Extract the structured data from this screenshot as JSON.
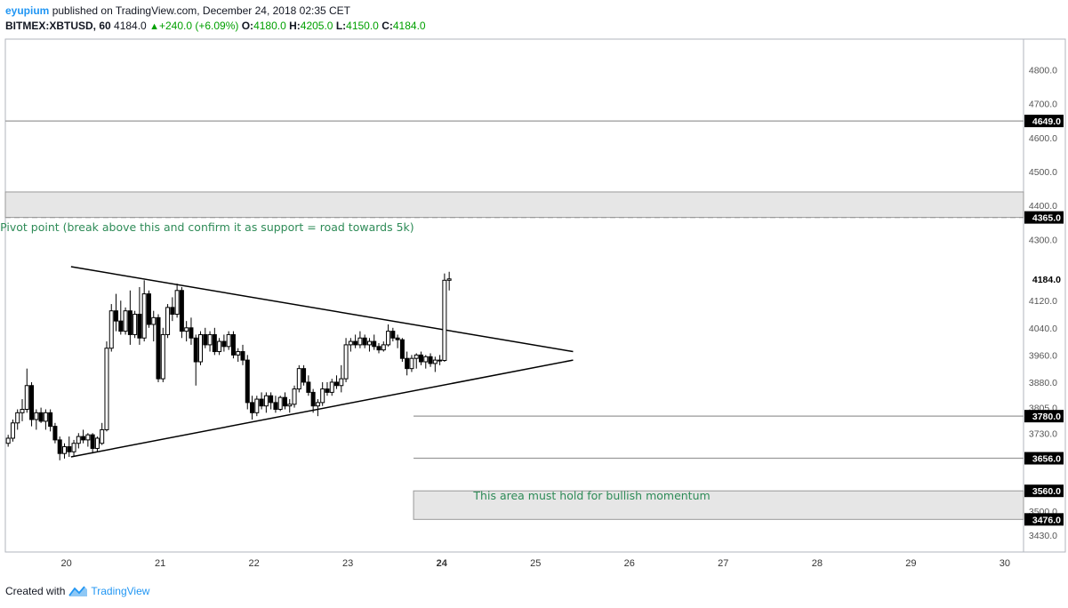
{
  "header": {
    "user": "eyupium",
    "published_text": "published on TradingView.com, December 24, 2018 02:35 CET",
    "symbol": "BITMEX:XBTUSD, 60",
    "last": "4184.0",
    "change": "+240.0 (+6.09%)",
    "open_label": "O:",
    "open": "4180.0",
    "high_label": "H:",
    "high": "4205.0",
    "low_label": "L:",
    "low": "4150.0",
    "close_label": "C:",
    "close": "4184.0"
  },
  "footer": {
    "created_with": "Created with",
    "brand": "TradingView"
  },
  "colors": {
    "up": "#ffffff",
    "down": "#000000",
    "level_line": "#999999",
    "zone": "#e6e6e6",
    "annotation": "#2e8b57",
    "accent": "#2196f3"
  },
  "chart_data": {
    "type": "candlestick",
    "x_axis": {
      "unit": "day (December 2018)",
      "range": [
        19.35,
        30.2
      ],
      "ticks": [
        20,
        21,
        22,
        23,
        24,
        25,
        26,
        27,
        28,
        29,
        30
      ]
    },
    "y_axis": {
      "range": [
        3380,
        4890
      ],
      "ticks": [
        4800,
        4700,
        4600,
        4500,
        4400,
        4300,
        4120,
        4040,
        3960,
        3880,
        3805,
        3730,
        3500,
        3430
      ]
    },
    "price_labels": [
      {
        "value": 4649,
        "label": "4649.0"
      },
      {
        "value": 4365,
        "label": "4365.0"
      },
      {
        "value": 4184,
        "label": "4184.0",
        "current": true
      },
      {
        "value": 3780,
        "label": "3780.0"
      },
      {
        "value": 3656,
        "label": "3656.0"
      },
      {
        "value": 3560,
        "label": "3560.0"
      },
      {
        "value": 3476,
        "label": "3476.0"
      }
    ],
    "levels": [
      {
        "price": 4649,
        "x_start": 19.35,
        "style": "solid"
      },
      {
        "price": 4365,
        "x_start": 19.35,
        "style": "dashed"
      },
      {
        "price": 3780,
        "x_start": 23.7,
        "style": "solid"
      },
      {
        "price": 3656,
        "x_start": 23.7,
        "style": "solid"
      }
    ],
    "zones": [
      {
        "from": 4365,
        "to": 4440,
        "x_start": 19.35
      },
      {
        "from": 3476,
        "to": 3560,
        "x_start": 23.7
      }
    ],
    "trendlines": [
      {
        "from": [
          20.05,
          4220
        ],
        "to": [
          25.4,
          3970
        ]
      },
      {
        "from": [
          20.05,
          3660
        ],
        "to": [
          25.4,
          3945
        ]
      }
    ],
    "annotations": [
      {
        "text": "Pivot point (break above this and confirm it as support = road towards 5k)",
        "x": 21.5,
        "y": 4325
      },
      {
        "text": "This area must hold for bullish momentum",
        "x": 25.6,
        "y": 3535
      }
    ],
    "candles": [
      {
        "x": 19.38,
        "o": 3700,
        "h": 3725,
        "l": 3690,
        "c": 3715
      },
      {
        "x": 19.43,
        "o": 3715,
        "h": 3770,
        "l": 3705,
        "c": 3760
      },
      {
        "x": 19.48,
        "o": 3760,
        "h": 3800,
        "l": 3740,
        "c": 3790
      },
      {
        "x": 19.53,
        "o": 3790,
        "h": 3830,
        "l": 3765,
        "c": 3800
      },
      {
        "x": 19.58,
        "o": 3800,
        "h": 3920,
        "l": 3790,
        "c": 3870
      },
      {
        "x": 19.63,
        "o": 3870,
        "h": 3880,
        "l": 3750,
        "c": 3770
      },
      {
        "x": 19.68,
        "o": 3770,
        "h": 3800,
        "l": 3740,
        "c": 3790
      },
      {
        "x": 19.73,
        "o": 3790,
        "h": 3805,
        "l": 3760,
        "c": 3765
      },
      {
        "x": 19.78,
        "o": 3765,
        "h": 3800,
        "l": 3740,
        "c": 3790
      },
      {
        "x": 19.83,
        "o": 3790,
        "h": 3800,
        "l": 3735,
        "c": 3750
      },
      {
        "x": 19.88,
        "o": 3750,
        "h": 3760,
        "l": 3700,
        "c": 3710
      },
      {
        "x": 19.93,
        "o": 3710,
        "h": 3720,
        "l": 3650,
        "c": 3670
      },
      {
        "x": 19.98,
        "o": 3670,
        "h": 3700,
        "l": 3655,
        "c": 3690
      },
      {
        "x": 20.03,
        "o": 3690,
        "h": 3720,
        "l": 3660,
        "c": 3675
      },
      {
        "x": 20.08,
        "o": 3675,
        "h": 3710,
        "l": 3660,
        "c": 3700
      },
      {
        "x": 20.13,
        "o": 3700,
        "h": 3730,
        "l": 3685,
        "c": 3720
      },
      {
        "x": 20.18,
        "o": 3720,
        "h": 3740,
        "l": 3700,
        "c": 3710
      },
      {
        "x": 20.23,
        "o": 3710,
        "h": 3730,
        "l": 3690,
        "c": 3725
      },
      {
        "x": 20.28,
        "o": 3725,
        "h": 3730,
        "l": 3670,
        "c": 3685
      },
      {
        "x": 20.33,
        "o": 3685,
        "h": 3720,
        "l": 3675,
        "c": 3715
      },
      {
        "x": 20.38,
        "o": 3700,
        "h": 3760,
        "l": 3695,
        "c": 3740
      },
      {
        "x": 20.43,
        "o": 3740,
        "h": 4000,
        "l": 3735,
        "c": 3980
      },
      {
        "x": 20.48,
        "o": 3980,
        "h": 4110,
        "l": 3970,
        "c": 4090
      },
      {
        "x": 20.53,
        "o": 4090,
        "h": 4140,
        "l": 4030,
        "c": 4060
      },
      {
        "x": 20.58,
        "o": 4060,
        "h": 4120,
        "l": 4020,
        "c": 4030
      },
      {
        "x": 20.63,
        "o": 4030,
        "h": 4100,
        "l": 4020,
        "c": 4090
      },
      {
        "x": 20.68,
        "o": 4090,
        "h": 4150,
        "l": 3990,
        "c": 4020
      },
      {
        "x": 20.73,
        "o": 4020,
        "h": 4090,
        "l": 4010,
        "c": 4080
      },
      {
        "x": 20.78,
        "o": 4080,
        "h": 4160,
        "l": 3990,
        "c": 4010
      },
      {
        "x": 20.83,
        "o": 4010,
        "h": 4180,
        "l": 4000,
        "c": 4140
      },
      {
        "x": 20.88,
        "o": 4140,
        "h": 4150,
        "l": 4040,
        "c": 4050
      },
      {
        "x": 20.93,
        "o": 4050,
        "h": 4090,
        "l": 4000,
        "c": 4070
      },
      {
        "x": 20.98,
        "o": 4070,
        "h": 4080,
        "l": 3880,
        "c": 3890
      },
      {
        "x": 21.03,
        "o": 3890,
        "h": 4040,
        "l": 3880,
        "c": 4020
      },
      {
        "x": 21.08,
        "o": 4020,
        "h": 4110,
        "l": 4010,
        "c": 4100
      },
      {
        "x": 21.13,
        "o": 4100,
        "h": 4130,
        "l": 4060,
        "c": 4080
      },
      {
        "x": 21.18,
        "o": 4080,
        "h": 4170,
        "l": 4070,
        "c": 4150
      },
      {
        "x": 21.23,
        "o": 4150,
        "h": 4160,
        "l": 4010,
        "c": 4030
      },
      {
        "x": 21.28,
        "o": 4030,
        "h": 4060,
        "l": 4000,
        "c": 4040
      },
      {
        "x": 21.33,
        "o": 4040,
        "h": 4070,
        "l": 3990,
        "c": 4010
      },
      {
        "x": 21.38,
        "o": 4010,
        "h": 4020,
        "l": 3870,
        "c": 3940
      },
      {
        "x": 21.43,
        "o": 3940,
        "h": 4030,
        "l": 3930,
        "c": 4020
      },
      {
        "x": 21.48,
        "o": 4020,
        "h": 4040,
        "l": 3980,
        "c": 3990
      },
      {
        "x": 21.53,
        "o": 3990,
        "h": 4030,
        "l": 3970,
        "c": 4020
      },
      {
        "x": 21.58,
        "o": 4020,
        "h": 4040,
        "l": 3960,
        "c": 3970
      },
      {
        "x": 21.63,
        "o": 3970,
        "h": 4010,
        "l": 3960,
        "c": 4000
      },
      {
        "x": 21.68,
        "o": 4000,
        "h": 4020,
        "l": 3970,
        "c": 3985
      },
      {
        "x": 21.73,
        "o": 3985,
        "h": 4030,
        "l": 3975,
        "c": 4020
      },
      {
        "x": 21.78,
        "o": 4020,
        "h": 4030,
        "l": 3950,
        "c": 3960
      },
      {
        "x": 21.83,
        "o": 3960,
        "h": 3980,
        "l": 3940,
        "c": 3970
      },
      {
        "x": 21.88,
        "o": 3970,
        "h": 3990,
        "l": 3930,
        "c": 3945
      },
      {
        "x": 21.93,
        "o": 3945,
        "h": 3960,
        "l": 3800,
        "c": 3820
      },
      {
        "x": 21.98,
        "o": 3820,
        "h": 3840,
        "l": 3770,
        "c": 3790
      },
      {
        "x": 22.03,
        "o": 3790,
        "h": 3840,
        "l": 3780,
        "c": 3830
      },
      {
        "x": 22.08,
        "o": 3830,
        "h": 3850,
        "l": 3800,
        "c": 3810
      },
      {
        "x": 22.13,
        "o": 3810,
        "h": 3850,
        "l": 3790,
        "c": 3840
      },
      {
        "x": 22.18,
        "o": 3840,
        "h": 3850,
        "l": 3800,
        "c": 3820
      },
      {
        "x": 22.23,
        "o": 3820,
        "h": 3840,
        "l": 3790,
        "c": 3800
      },
      {
        "x": 22.28,
        "o": 3800,
        "h": 3840,
        "l": 3795,
        "c": 3835
      },
      {
        "x": 22.33,
        "o": 3835,
        "h": 3850,
        "l": 3800,
        "c": 3810
      },
      {
        "x": 22.38,
        "o": 3810,
        "h": 3830,
        "l": 3790,
        "c": 3815
      },
      {
        "x": 22.43,
        "o": 3815,
        "h": 3870,
        "l": 3805,
        "c": 3860
      },
      {
        "x": 22.48,
        "o": 3860,
        "h": 3930,
        "l": 3850,
        "c": 3920
      },
      {
        "x": 22.53,
        "o": 3920,
        "h": 3930,
        "l": 3870,
        "c": 3880
      },
      {
        "x": 22.58,
        "o": 3880,
        "h": 3900,
        "l": 3840,
        "c": 3850
      },
      {
        "x": 22.63,
        "o": 3850,
        "h": 3860,
        "l": 3790,
        "c": 3810
      },
      {
        "x": 22.68,
        "o": 3810,
        "h": 3830,
        "l": 3780,
        "c": 3820
      },
      {
        "x": 22.73,
        "o": 3820,
        "h": 3880,
        "l": 3810,
        "c": 3860
      },
      {
        "x": 22.78,
        "o": 3860,
        "h": 3880,
        "l": 3840,
        "c": 3850
      },
      {
        "x": 22.83,
        "o": 3850,
        "h": 3890,
        "l": 3840,
        "c": 3880
      },
      {
        "x": 22.88,
        "o": 3880,
        "h": 3900,
        "l": 3860,
        "c": 3870
      },
      {
        "x": 22.93,
        "o": 3870,
        "h": 3930,
        "l": 3850,
        "c": 3890
      },
      {
        "x": 22.98,
        "o": 3890,
        "h": 4010,
        "l": 3880,
        "c": 3990
      },
      {
        "x": 23.03,
        "o": 3990,
        "h": 4010,
        "l": 3970,
        "c": 4000
      },
      {
        "x": 23.08,
        "o": 4000,
        "h": 4020,
        "l": 3980,
        "c": 3990
      },
      {
        "x": 23.13,
        "o": 3990,
        "h": 4030,
        "l": 3980,
        "c": 4010
      },
      {
        "x": 23.18,
        "o": 4010,
        "h": 4020,
        "l": 3980,
        "c": 3990
      },
      {
        "x": 23.23,
        "o": 3990,
        "h": 4010,
        "l": 3970,
        "c": 4000
      },
      {
        "x": 23.28,
        "o": 4000,
        "h": 4020,
        "l": 3975,
        "c": 3985
      },
      {
        "x": 23.33,
        "o": 3985,
        "h": 3995,
        "l": 3965,
        "c": 3975
      },
      {
        "x": 23.38,
        "o": 3975,
        "h": 4000,
        "l": 3970,
        "c": 3990
      },
      {
        "x": 23.43,
        "o": 3990,
        "h": 4050,
        "l": 3985,
        "c": 4030
      },
      {
        "x": 23.48,
        "o": 4030,
        "h": 4040,
        "l": 4000,
        "c": 4010
      },
      {
        "x": 23.53,
        "o": 4010,
        "h": 4020,
        "l": 3980,
        "c": 4005
      },
      {
        "x": 23.58,
        "o": 4005,
        "h": 4010,
        "l": 3940,
        "c": 3950
      },
      {
        "x": 23.63,
        "o": 3950,
        "h": 3970,
        "l": 3900,
        "c": 3920
      },
      {
        "x": 23.68,
        "o": 3920,
        "h": 3960,
        "l": 3910,
        "c": 3950
      },
      {
        "x": 23.73,
        "o": 3950,
        "h": 3965,
        "l": 3920,
        "c": 3960
      },
      {
        "x": 23.78,
        "o": 3960,
        "h": 3970,
        "l": 3930,
        "c": 3940
      },
      {
        "x": 23.83,
        "o": 3940,
        "h": 3960,
        "l": 3920,
        "c": 3955
      },
      {
        "x": 23.88,
        "o": 3955,
        "h": 3965,
        "l": 3925,
        "c": 3935
      },
      {
        "x": 23.93,
        "o": 3935,
        "h": 3955,
        "l": 3910,
        "c": 3945
      },
      {
        "x": 23.98,
        "o": 3945,
        "h": 3960,
        "l": 3930,
        "c": 3944
      },
      {
        "x": 24.03,
        "o": 3944,
        "h": 4200,
        "l": 3940,
        "c": 4180
      },
      {
        "x": 24.08,
        "o": 4180,
        "h": 4205,
        "l": 4150,
        "c": 4184
      }
    ]
  }
}
